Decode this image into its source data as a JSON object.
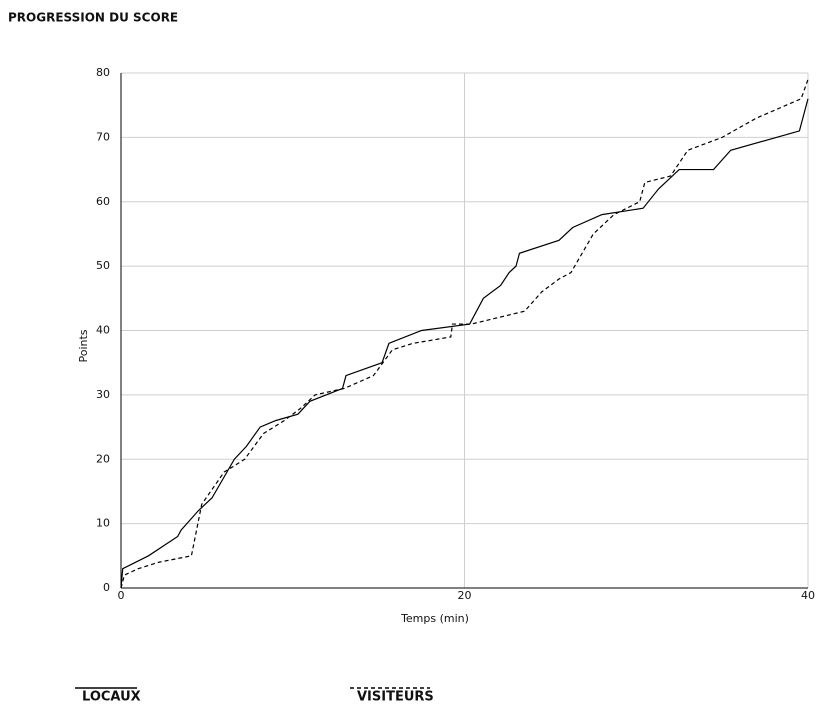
{
  "chart_data": {
    "type": "line",
    "title": "PROGRESSION DU SCORE",
    "x_label": "Temps (min)",
    "y_label": "Points",
    "xlim": [
      0,
      40
    ],
    "xticks": [
      0,
      20,
      40
    ],
    "ylim": [
      0,
      80
    ],
    "yticks": [
      0,
      10,
      20,
      30,
      40,
      50,
      60,
      70,
      80
    ],
    "grid": true,
    "legend": "bottom",
    "series": [
      {
        "name": "LOCAUX",
        "color": "#000000",
        "line_style": "solid",
        "x": [
          0,
          0.1,
          1.6,
          3.3,
          3.5,
          4.5,
          5.3,
          6.6,
          7.3,
          8.1,
          9,
          10.3,
          11,
          12.9,
          13.1,
          15.2,
          15.6,
          17.5,
          20.3,
          21.1,
          22.1,
          22.6,
          23,
          23.2,
          25.5,
          26.3,
          28,
          30.4,
          31,
          31.3,
          32.5,
          34.5,
          35.5,
          39.5,
          40
        ],
        "values": [
          0,
          3,
          5,
          8,
          9,
          12,
          14,
          20,
          22,
          25,
          26,
          27,
          29,
          31,
          33,
          35,
          38,
          40,
          41,
          45,
          47,
          49,
          50,
          52,
          54,
          56,
          58,
          59,
          61,
          62,
          65,
          65,
          68,
          71,
          76
        ]
      },
      {
        "name": "VISITEURS",
        "color": "#000000",
        "line_style": "dashed",
        "x": [
          0,
          0.2,
          1,
          2.2,
          4.1,
          4.4,
          4.7,
          6,
          7.2,
          8.3,
          9.5,
          10.5,
          11.3,
          13,
          14.7,
          15.8,
          17,
          19.2,
          19.3,
          20.4,
          23.5,
          24.5,
          25.5,
          26.2,
          27.5,
          28.7,
          30.2,
          30.5,
          32,
          33,
          35,
          37,
          39.6,
          40
        ],
        "values": [
          0,
          2,
          3,
          4,
          5,
          9,
          13,
          18,
          20,
          24,
          26,
          28,
          30,
          31,
          33,
          37,
          38,
          39,
          41,
          41,
          43,
          46,
          48,
          49,
          55,
          58,
          60,
          63,
          64,
          68,
          70,
          73,
          76,
          79
        ]
      }
    ]
  }
}
